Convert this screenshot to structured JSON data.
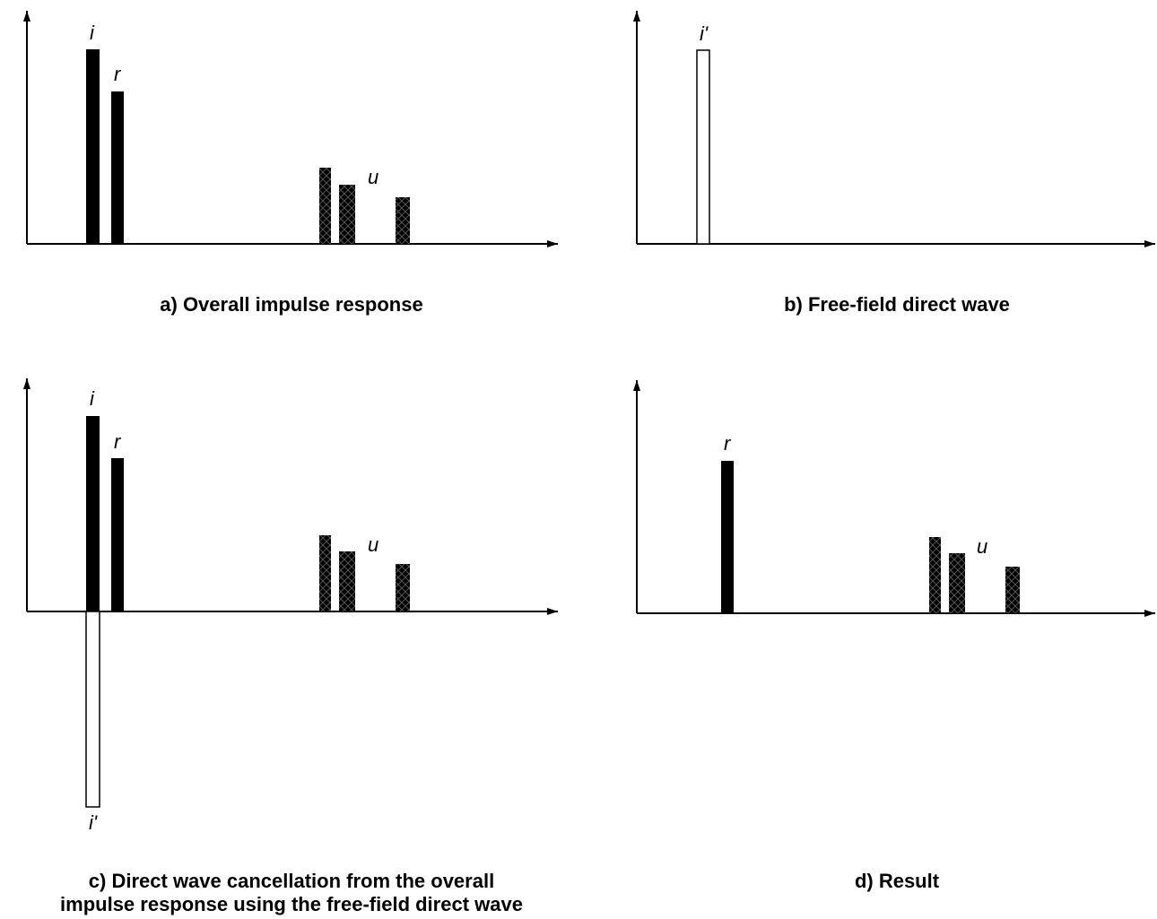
{
  "panels": [
    {
      "id": "a",
      "caption": "a)   Overall impulse response",
      "marks": [
        {
          "kind": "solid",
          "label": "i"
        },
        {
          "kind": "solid",
          "label": "r"
        },
        {
          "kind": "hatched",
          "label": ""
        },
        {
          "kind": "hatched",
          "label": "u"
        },
        {
          "kind": "hatched",
          "label": ""
        }
      ]
    },
    {
      "id": "b",
      "caption": "b)   Free-field direct wave",
      "marks": [
        {
          "kind": "open",
          "label": "i'"
        }
      ]
    },
    {
      "id": "c",
      "caption_lines": [
        "c)   Direct wave cancellation from the overall",
        "impulse response using the free-field direct wave"
      ],
      "marks": [
        {
          "kind": "solid",
          "label": "i"
        },
        {
          "kind": "open",
          "label": "i'"
        },
        {
          "kind": "solid",
          "label": "r"
        },
        {
          "kind": "hatched",
          "label": ""
        },
        {
          "kind": "hatched",
          "label": "u"
        },
        {
          "kind": "hatched",
          "label": ""
        }
      ]
    },
    {
      "id": "d",
      "caption": "d)   Result",
      "marks": [
        {
          "kind": "solid",
          "label": "r"
        },
        {
          "kind": "hatched",
          "label": ""
        },
        {
          "kind": "hatched",
          "label": "u"
        },
        {
          "kind": "hatched",
          "label": ""
        }
      ]
    }
  ]
}
